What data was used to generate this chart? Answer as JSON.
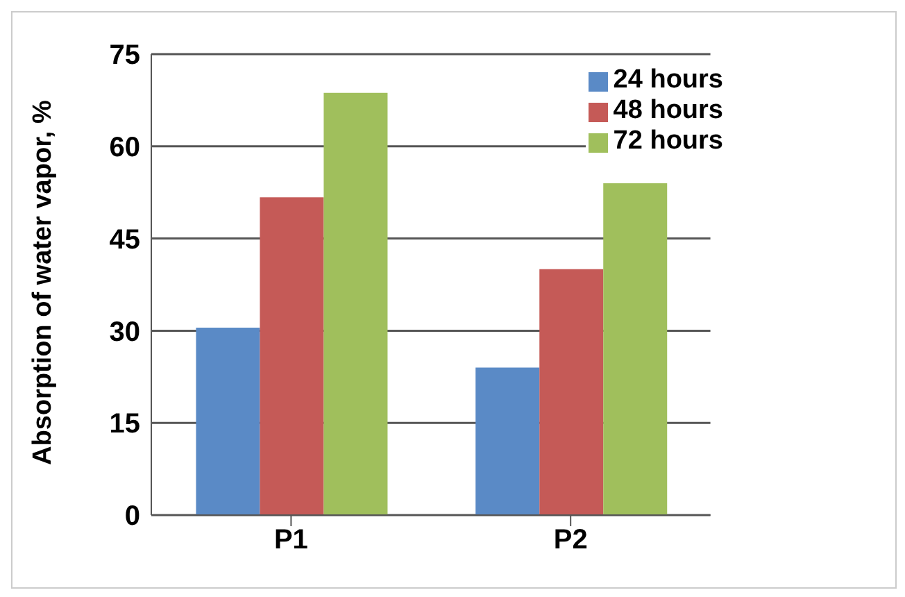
{
  "chart_data": {
    "type": "bar",
    "ylabel": "Absorption of water vapor, %",
    "categories": [
      "P1",
      "P2"
    ],
    "series": [
      {
        "name": "24 hours",
        "color": "#5a8ac6",
        "values": [
          30.5,
          24
        ]
      },
      {
        "name": "48 hours",
        "color": "#c55a57",
        "values": [
          51.7,
          40
        ]
      },
      {
        "name": "72 hours",
        "color": "#a0bf5c",
        "values": [
          68.7,
          54
        ]
      }
    ],
    "ylim": [
      0,
      75
    ],
    "yticks": [
      0,
      15,
      30,
      45,
      60,
      75
    ],
    "grid": "y",
    "legend": "top right"
  }
}
